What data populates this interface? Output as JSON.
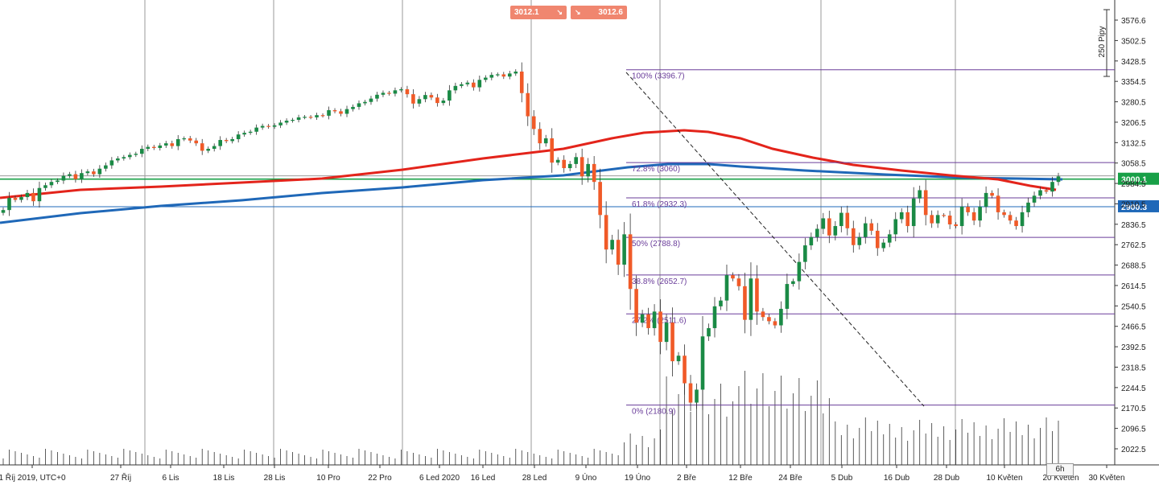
{
  "trade_panel": {
    "sell_price": "3012.1",
    "buy_price": "3012.6",
    "sell_arrow": "↘",
    "buy_arrow": "↘"
  },
  "timeframe": "6h",
  "pips_label": "250 Pipy",
  "colors": {
    "bull": "#1a8a45",
    "bear": "#f05a28",
    "ma_red": "#e3241b",
    "ma_blue": "#1f68b8",
    "fib": "#6a3d9a",
    "grid": "#999999",
    "price_green": "#18a047",
    "price_blue": "#1f68b8"
  },
  "chart_data": {
    "type": "candlestick",
    "y_ticks": [
      "3576.6",
      "3502.5",
      "3428.5",
      "3354.5",
      "3280.5",
      "3206.5",
      "3132.5",
      "3058.5",
      "2984.5",
      "2910.5",
      "2836.5",
      "2762.5",
      "2688.5",
      "2614.5",
      "2540.5",
      "2466.5",
      "2392.5",
      "2318.5",
      "2244.5",
      "2170.5",
      "2096.5",
      "2022.5"
    ],
    "x_ticks": [
      "1 Říj 2019, UTC+0",
      "27 Říj",
      "6 Lis",
      "18 Lis",
      "28 Lis",
      "10 Pro",
      "22 Pro",
      "6 Led 2020",
      "16 Led",
      "28 Led",
      "9 Úno",
      "19 Úno",
      "2 Bře",
      "12 Bře",
      "24 Bře",
      "5 Dub",
      "16 Dub",
      "28 Dub",
      "10 Květen",
      "20 Květen",
      "30 Květen"
    ],
    "price_labels": [
      {
        "label": "3000.1",
        "value": 3000.1,
        "color": "green"
      },
      {
        "label": "2900.3",
        "value": 2900.3,
        "color": "blue"
      }
    ],
    "fib_levels": [
      {
        "label": "100% (3396.7)",
        "value": 3396.7
      },
      {
        "label": "72.8% (3060)",
        "value": 3060
      },
      {
        "label": "61.8% (2932.3)",
        "value": 2932.3
      },
      {
        "label": "50% (2788.8)",
        "value": 2788.8
      },
      {
        "label": "38.8% (2652.7)",
        "value": 2652.7
      },
      {
        "label": "27.2% (2511.6)",
        "value": 2511.6
      },
      {
        "label": "0% (2180.9)",
        "value": 2180.9
      }
    ],
    "closes": [
      2888,
      2932,
      2925,
      2935,
      2950,
      2920,
      2968,
      2978,
      2990,
      2995,
      3012,
      3018,
      3000,
      3022,
      3028,
      3018,
      3038,
      3050,
      3068,
      3075,
      3080,
      3088,
      3092,
      3110,
      3117,
      3113,
      3122,
      3130,
      3120,
      3145,
      3148,
      3140,
      3130,
      3103,
      3110,
      3120,
      3142,
      3138,
      3145,
      3162,
      3168,
      3172,
      3187,
      3193,
      3190,
      3195,
      3205,
      3212,
      3215,
      3224,
      3226,
      3224,
      3232,
      3230,
      3250,
      3246,
      3237,
      3254,
      3262,
      3275,
      3280,
      3292,
      3306,
      3313,
      3310,
      3322,
      3326,
      3308,
      3274,
      3290,
      3305,
      3296,
      3276,
      3285,
      3322,
      3338,
      3344,
      3350,
      3333,
      3360,
      3368,
      3378,
      3380,
      3372,
      3383,
      3390,
      3312,
      3228,
      3182,
      3130,
      3148,
      3060,
      3070,
      3040,
      3055,
      3080,
      3010,
      3055,
      2990,
      2870,
      2745,
      2780,
      2690,
      2800,
      2602,
      2480,
      2510,
      2460,
      2520,
      2410,
      2480,
      2340,
      2360,
      2260,
      2190,
      2237,
      2430,
      2460,
      2539,
      2560,
      2652,
      2640,
      2612,
      2490,
      2640,
      2520,
      2500,
      2485,
      2470,
      2530,
      2620,
      2630,
      2700,
      2760,
      2790,
      2820,
      2858,
      2796,
      2830,
      2878,
      2822,
      2761,
      2790,
      2840,
      2813,
      2750,
      2770,
      2800,
      2855,
      2880,
      2830,
      2930,
      2960,
      2870,
      2840,
      2870,
      2868,
      2836,
      2830,
      2900,
      2880,
      2850,
      2900,
      2950,
      2940,
      2880,
      2870,
      2850,
      2830,
      2880,
      2915,
      2940,
      2960,
      2955,
      2990,
      3010
    ]
  }
}
